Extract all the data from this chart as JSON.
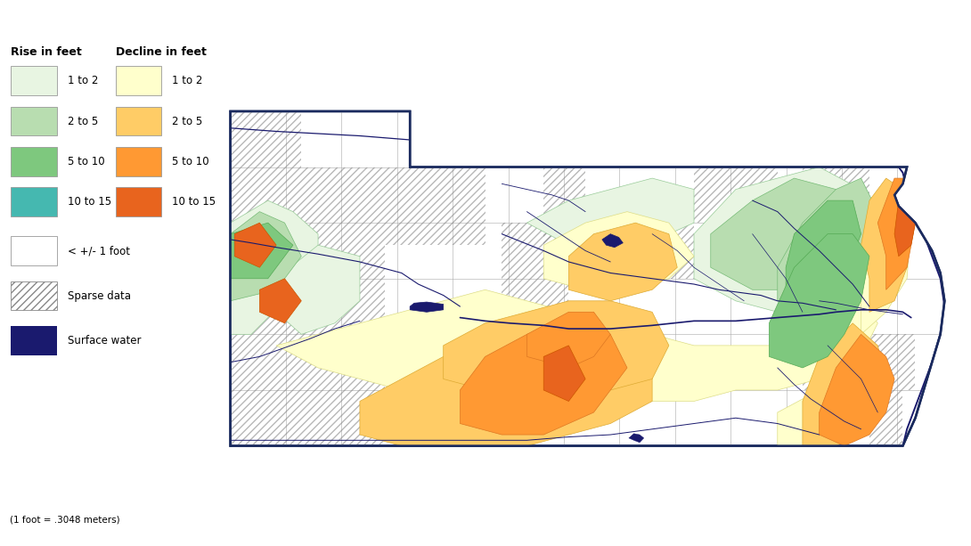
{
  "footnote": "(1 foot = .3048 meters)",
  "legend_rise_title": "Rise in feet",
  "legend_decline_title": "Decline in feet",
  "rise_colors": [
    "#e8f5e2",
    "#b8ddb0",
    "#7ec87e",
    "#45b8b0"
  ],
  "rise_labels": [
    "1 to 2",
    "2 to 5",
    "5 to 10",
    "10 to 15"
  ],
  "decline_colors": [
    "#ffffcc",
    "#ffcc66",
    "#ff9933",
    "#e8641e"
  ],
  "decline_labels": [
    "1 to 2",
    "2 to 5",
    "5 to 10",
    "10 to 15"
  ],
  "less_1ft_color": "#ffffff",
  "less_1ft_label": "< +/- 1 foot",
  "sparse_label": "Sparse data",
  "surface_water_color": "#1a1a6e",
  "surface_water_label": "Surface water",
  "border_color": "#1a2a5e",
  "county_grid_color": "#aaaaaa",
  "background_color": "#ffffff",
  "fig_bg_color": "#ffffff",
  "lon_min": -104.1,
  "lon_max": -95.25,
  "lat_min": 39.85,
  "lat_max": 43.1,
  "fig_width": 10.9,
  "fig_height": 6.13,
  "dpi": 100
}
